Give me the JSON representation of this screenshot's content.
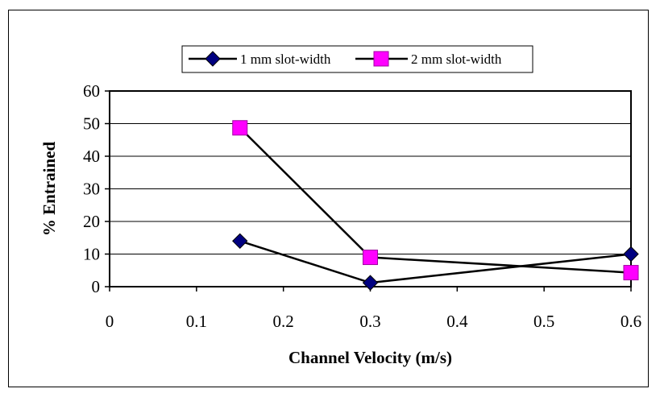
{
  "chart_data": {
    "type": "line",
    "title": "",
    "xlabel": "Channel Velocity (m/s)",
    "ylabel": "% Entrained",
    "xlim": [
      0,
      0.6
    ],
    "ylim": [
      0,
      60
    ],
    "x_ticks": [
      "0",
      "0.1",
      "0.2",
      "0.3",
      "0.4",
      "0.5",
      "0.6"
    ],
    "y_ticks": [
      "0",
      "10",
      "20",
      "30",
      "40",
      "50",
      "60"
    ],
    "grid": "horizontal",
    "legend_position": "top",
    "series": [
      {
        "name": "1 mm slot-width",
        "marker": "diamond",
        "color": "#000080",
        "x": [
          0.15,
          0.3,
          0.6
        ],
        "y": [
          14,
          1.2,
          10
        ]
      },
      {
        "name": "2 mm slot-width",
        "marker": "square",
        "color": "#ff00ff",
        "x": [
          0.15,
          0.3,
          0.6
        ],
        "y": [
          48.7,
          9,
          4.3
        ]
      }
    ]
  }
}
